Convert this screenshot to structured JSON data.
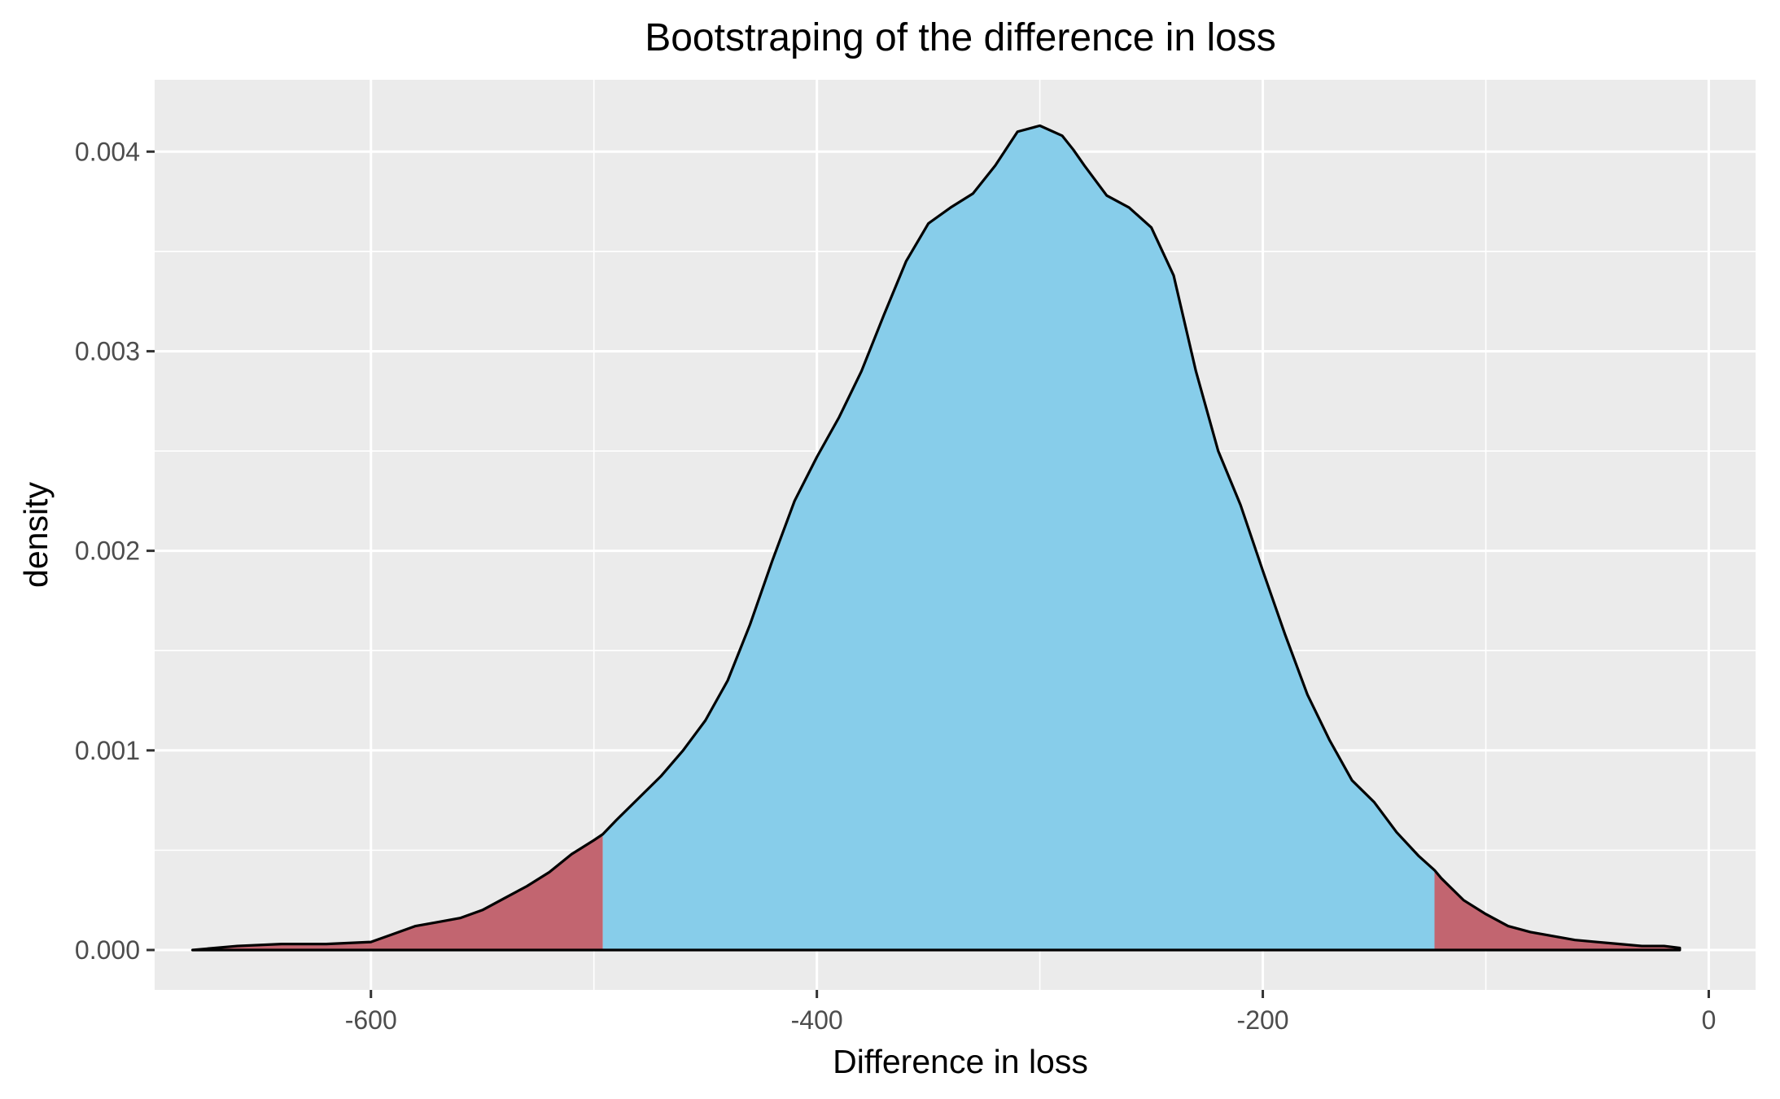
{
  "colors": {
    "panel": "#ebebeb",
    "grid": "#ffffff",
    "center_fill": "#87cdea",
    "tail_fill": "#c26570",
    "outline": "#000000",
    "tick": "#333333"
  },
  "chart_data": {
    "type": "area",
    "title": "Bootstraping of the difference in loss",
    "xlabel": "Difference in loss",
    "ylabel": "density",
    "xlim": [
      -697,
      21
    ],
    "ylim": [
      -0.0002,
      0.00436
    ],
    "x_ticks": [
      -600,
      -400,
      -200,
      0
    ],
    "x_tick_labels": [
      "-600",
      "-400",
      "-200",
      "0"
    ],
    "y_ticks": [
      0,
      0.001,
      0.002,
      0.003,
      0.004
    ],
    "y_tick_labels": [
      "0.000",
      "0.001",
      "0.002",
      "0.003",
      "0.004"
    ],
    "grid": true,
    "tail_cutoffs": [
      -496,
      -123
    ],
    "series": [
      {
        "x": [
          -680,
          -660,
          -640,
          -620,
          -600,
          -590,
          -580,
          -570,
          -560,
          -550,
          -540,
          -530,
          -520,
          -510,
          -500,
          -496,
          -490,
          -480,
          -470,
          -460,
          -450,
          -440,
          -430,
          -420,
          -410,
          -400,
          -390,
          -380,
          -370,
          -360,
          -350,
          -340,
          -330,
          -320,
          -310,
          -300,
          -290,
          -285,
          -280,
          -270,
          -260,
          -250,
          -240,
          -230,
          -220,
          -210,
          -200,
          -190,
          -180,
          -170,
          -160,
          -150,
          -140,
          -130,
          -123,
          -120,
          -110,
          -100,
          -90,
          -80,
          -70,
          -60,
          -50,
          -40,
          -30,
          -20,
          -13
        ],
        "y": [
          0.0,
          2e-05,
          3e-05,
          3e-05,
          4e-05,
          8e-05,
          0.00012,
          0.00014,
          0.00016,
          0.0002,
          0.00026,
          0.00032,
          0.00039,
          0.00048,
          0.00055,
          0.00058,
          0.00065,
          0.00076,
          0.00087,
          0.001,
          0.00115,
          0.00135,
          0.00163,
          0.00195,
          0.00225,
          0.00247,
          0.00267,
          0.0029,
          0.00318,
          0.00345,
          0.00364,
          0.00372,
          0.00379,
          0.00393,
          0.0041,
          0.00413,
          0.00408,
          0.00401,
          0.00393,
          0.00378,
          0.00372,
          0.00362,
          0.00338,
          0.0029,
          0.0025,
          0.00223,
          0.0019,
          0.00158,
          0.00128,
          0.00105,
          0.00085,
          0.00074,
          0.00059,
          0.00047,
          0.0004,
          0.00036,
          0.00025,
          0.00018,
          0.00012,
          9e-05,
          7e-05,
          5e-05,
          4e-05,
          3e-05,
          2e-05,
          2e-05,
          1e-05
        ]
      }
    ]
  }
}
